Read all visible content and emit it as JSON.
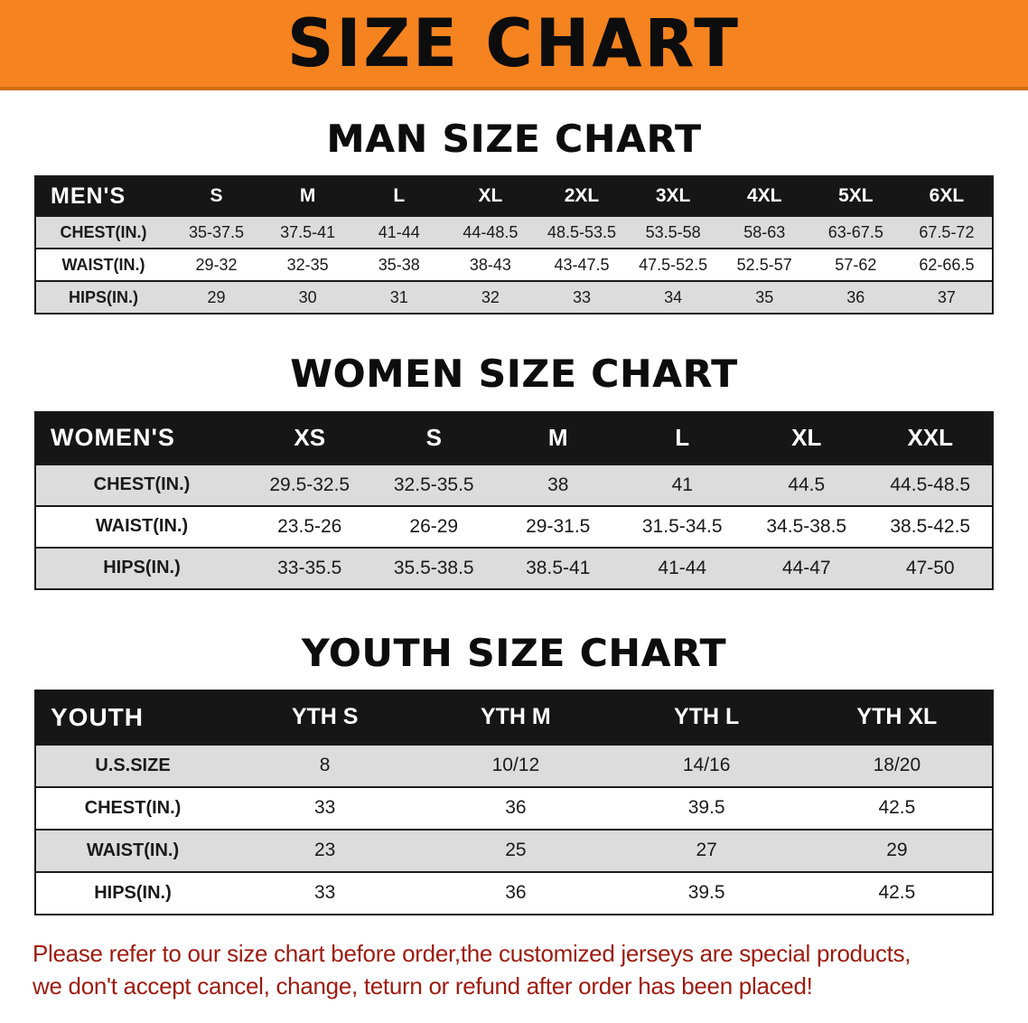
{
  "banner": {
    "title": "SIZE CHART"
  },
  "colors": {
    "banner_bg": "#f5831f",
    "banner_edge": "#d26f10",
    "header_bg": "#161616",
    "stripe": "#dcdcdc",
    "footer_text": "#9e1b10"
  },
  "sections": [
    {
      "heading": "MAN SIZE CHART",
      "table": {
        "header": [
          "MEN'S",
          "S",
          "M",
          "L",
          "XL",
          "2XL",
          "3XL",
          "4XL",
          "5XL",
          "6XL"
        ],
        "rows": [
          [
            "CHEST(IN.)",
            "35-37.5",
            "37.5-41",
            "41-44",
            "44-48.5",
            "48.5-53.5",
            "53.5-58",
            "58-63",
            "63-67.5",
            "67.5-72"
          ],
          [
            "WAIST(IN.)",
            "29-32",
            "32-35",
            "35-38",
            "38-43",
            "43-47.5",
            "47.5-52.5",
            "52.5-57",
            "57-62",
            "62-66.5"
          ],
          [
            "HIPS(IN.)",
            "29",
            "30",
            "31",
            "32",
            "33",
            "34",
            "35",
            "36",
            "37"
          ]
        ]
      }
    },
    {
      "heading": "WOMEN SIZE CHART",
      "table": {
        "header": [
          "WOMEN'S",
          "XS",
          "S",
          "M",
          "L",
          "XL",
          "XXL"
        ],
        "rows": [
          [
            "CHEST(IN.)",
            "29.5-32.5",
            "32.5-35.5",
            "38",
            "41",
            "44.5",
            "44.5-48.5"
          ],
          [
            "WAIST(IN.)",
            "23.5-26",
            "26-29",
            "29-31.5",
            "31.5-34.5",
            "34.5-38.5",
            "38.5-42.5"
          ],
          [
            "HIPS(IN.)",
            "33-35.5",
            "35.5-38.5",
            "38.5-41",
            "41-44",
            "44-47",
            "47-50"
          ]
        ]
      }
    },
    {
      "heading": "YOUTH SIZE CHART",
      "table": {
        "header": [
          "YOUTH",
          "YTH S",
          "YTH M",
          "YTH L",
          "YTH XL"
        ],
        "rows": [
          [
            "U.S.SIZE",
            "8",
            "10/12",
            "14/16",
            "18/20"
          ],
          [
            "CHEST(IN.)",
            "33",
            "36",
            "39.5",
            "42.5"
          ],
          [
            "WAIST(IN.)",
            "23",
            "25",
            "27",
            "29"
          ],
          [
            "HIPS(IN.)",
            "33",
            "36",
            "39.5",
            "42.5"
          ]
        ]
      }
    }
  ],
  "footer": {
    "line1": "Please refer to our size chart before order,the customized jerseys are special products,",
    "line2": "we don't accept cancel, change, teturn or refund after order has been placed!"
  }
}
